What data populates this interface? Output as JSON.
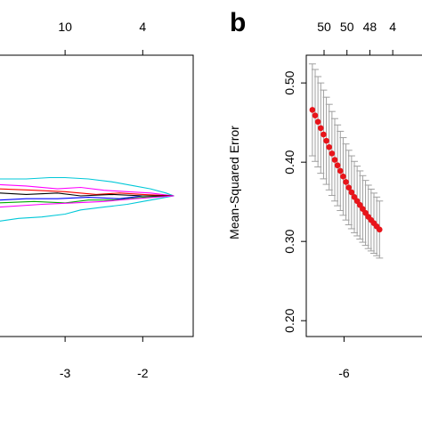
{
  "panel_a": {
    "top_ticks": [
      "10",
      "4"
    ],
    "bottom_ticks": [
      "-3",
      "-2"
    ]
  },
  "panel_b": {
    "label": "b",
    "top_ticks": [
      "50",
      "50",
      "48",
      "4"
    ],
    "ylabel": "Mean-Squared Error",
    "yticks": [
      "0.50",
      "0.40",
      "0.30",
      "0.20"
    ],
    "xticks": [
      "-6"
    ]
  },
  "colors": {
    "point": "#e8141a",
    "errorbar": "#a0a0a0",
    "axis": "#000000",
    "paths": [
      "#00c8d8",
      "#ff00ff",
      "#ff0000",
      "#00aa00",
      "#0000ff",
      "#000000"
    ]
  },
  "chart_data": [
    {
      "type": "line",
      "panel": "a",
      "xlabel": "",
      "ylabel": "",
      "xlim": [
        -3.85,
        -1.35
      ],
      "ylim": [
        -1,
        1
      ],
      "top_axis": {
        "x": [
          -3,
          -2
        ],
        "labels": [
          "10",
          "4"
        ]
      },
      "series": [
        {
          "color": "#00c8d8",
          "x": [
            -3.85,
            -3.6,
            -3.3,
            -3.0,
            -2.8,
            -2.5,
            -2.2,
            -2.0,
            -1.8,
            -1.6
          ],
          "values": [
            -0.18,
            -0.16,
            -0.15,
            -0.13,
            -0.1,
            -0.08,
            -0.06,
            -0.04,
            -0.02,
            0.0
          ]
        },
        {
          "color": "#00c8d8",
          "x": [
            -3.85,
            -3.5,
            -3.2,
            -3.0,
            -2.7,
            -2.4,
            -2.1,
            -1.9,
            -1.7,
            -1.6
          ],
          "values": [
            0.12,
            0.12,
            0.13,
            0.13,
            0.12,
            0.1,
            0.07,
            0.05,
            0.02,
            0.0
          ]
        },
        {
          "color": "#ff00ff",
          "x": [
            -3.85,
            -3.5,
            -3.1,
            -2.8,
            -2.5,
            -2.2,
            -1.9,
            -1.6
          ],
          "values": [
            0.08,
            0.07,
            0.05,
            0.06,
            0.04,
            0.03,
            0.02,
            0.0
          ]
        },
        {
          "color": "#ff0000",
          "x": [
            -3.85,
            -3.4,
            -3.0,
            -2.6,
            -2.3,
            -2.0,
            -1.6
          ],
          "values": [
            0.05,
            0.04,
            0.03,
            0.01,
            0.02,
            0.01,
            0.0
          ]
        },
        {
          "color": "#00aa00",
          "x": [
            -3.85,
            -3.4,
            -3.0,
            -2.7,
            -2.4,
            -2.0,
            -1.6
          ],
          "values": [
            -0.05,
            -0.04,
            -0.05,
            -0.03,
            -0.03,
            -0.01,
            0.0
          ]
        },
        {
          "color": "#0000ff",
          "x": [
            -3.85,
            -3.5,
            -3.1,
            -2.7,
            -2.3,
            -2.0,
            -1.6
          ],
          "values": [
            -0.03,
            -0.02,
            -0.02,
            -0.01,
            -0.02,
            0.0,
            0.0
          ]
        },
        {
          "color": "#000000",
          "x": [
            -3.85,
            -3.5,
            -3.1,
            -2.8,
            -2.4,
            -2.0,
            -1.6
          ],
          "values": [
            0.02,
            0.01,
            0.02,
            0.0,
            0.01,
            0.0,
            0.0
          ]
        },
        {
          "color": "#ff00ff",
          "x": [
            -3.85,
            -3.3,
            -2.9,
            -2.5,
            -2.1,
            -1.6
          ],
          "values": [
            -0.08,
            -0.06,
            -0.05,
            -0.04,
            -0.02,
            0.0
          ]
        }
      ]
    },
    {
      "type": "scatter",
      "panel": "b",
      "xlabel": "",
      "ylabel": "Mean-Squared Error",
      "xlim": [
        -6.55,
        -4.1
      ],
      "ylim": [
        0.18,
        0.535
      ],
      "top_axis": {
        "x": [
          -6.55,
          -6.1,
          -5.65,
          -5.2
        ],
        "labels": [
          "50",
          "50",
          "48",
          "4"
        ]
      },
      "x": [
        -6.43,
        -6.375,
        -6.32,
        -6.265,
        -6.21,
        -6.155,
        -6.1,
        -6.045,
        -5.99,
        -5.935,
        -5.88,
        -5.825,
        -5.77,
        -5.715,
        -5.66,
        -5.605,
        -5.55,
        -5.495,
        -5.44,
        -5.385,
        -5.33,
        -5.275,
        -5.22,
        -5.165,
        -5.11
      ],
      "y": [
        0.466,
        0.459,
        0.451,
        0.443,
        0.435,
        0.427,
        0.419,
        0.411,
        0.403,
        0.396,
        0.389,
        0.382,
        0.375,
        0.368,
        0.362,
        0.356,
        0.351,
        0.346,
        0.341,
        0.336,
        0.331,
        0.327,
        0.323,
        0.319,
        0.315
      ],
      "error": [
        0.058,
        0.058,
        0.057,
        0.057,
        0.056,
        0.055,
        0.054,
        0.053,
        0.052,
        0.051,
        0.05,
        0.049,
        0.048,
        0.047,
        0.046,
        0.045,
        0.044,
        0.043,
        0.042,
        0.041,
        0.04,
        0.039,
        0.038,
        0.037,
        0.036
      ]
    }
  ]
}
